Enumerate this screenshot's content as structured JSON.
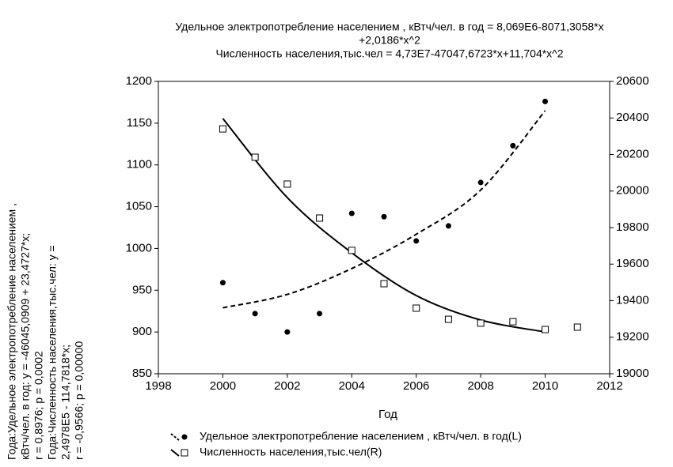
{
  "chart_data": {
    "type": "scatter",
    "title_lines": [
      "Удельное электропотребление населением , кВтч/чел. в год = 8,069E6-8071,3058*x",
      "+2,0186*x^2",
      "Численность населения,тыс.чел = 4,73E7-47047,6723*x+11,704*x^2"
    ],
    "annotations": [
      "Года:Удельное электропотребление населением ,",
      "кВтч/чел. в год:   y = -46045,0909 + 23,4727*x;",
      "r = 0,8976; p = 0,0002",
      "Года:Численность населения,тыс.чел:   y =",
      "2,4978E5 - 114,7818*x;",
      "r = -0,9566; p = 0,00000"
    ],
    "xlabel": "Год",
    "series": [
      {
        "name": "Удельное электропотребление населением , кВтч/чел. в год(L)",
        "color": "#000000",
        "marker": "circle",
        "line_style": "dashed",
        "x": [
          2000,
          2001,
          2002,
          2003,
          2004,
          2005,
          2006,
          2007,
          2008,
          2009,
          2010
        ],
        "values": [
          959,
          922,
          900,
          922,
          1042,
          1038,
          1009,
          1027,
          1079,
          1123,
          1176
        ],
        "fit": {
          "x": [
            2000,
            2002,
            2004,
            2006,
            2008,
            2010
          ],
          "values": [
            929,
            945,
            976,
            1017,
            1070,
            1165
          ]
        }
      },
      {
        "name": "Численность населения,тыс.чел(R)",
        "color": "#000000",
        "marker": "square",
        "line_style": "solid",
        "axis": "y2",
        "x": [
          2000,
          2001,
          2002,
          2003,
          2004,
          2005,
          2006,
          2007,
          2008,
          2009,
          2010,
          2011
        ],
        "values": [
          20340,
          20185,
          20038,
          19852,
          19675,
          19493,
          19359,
          19298,
          19277,
          19285,
          19242,
          19255
        ],
        "fit": {
          "x": [
            2000,
            2002,
            2004,
            2006,
            2008,
            2010
          ],
          "values": [
            20397,
            19964,
            19662,
            19428,
            19294,
            19229
          ]
        }
      }
    ],
    "xlim": [
      1998,
      2012
    ],
    "xticks": [
      1998,
      2000,
      2002,
      2004,
      2006,
      2008,
      2010,
      2012
    ],
    "ylim": [
      850,
      1200
    ],
    "yticks": [
      850,
      900,
      950,
      1000,
      1050,
      1100,
      1150,
      1200
    ],
    "y2lim": [
      19000,
      20600
    ],
    "y2ticks": [
      19000,
      19200,
      19400,
      19600,
      19800,
      20000,
      20200,
      20400,
      20600
    ],
    "grid": false
  }
}
